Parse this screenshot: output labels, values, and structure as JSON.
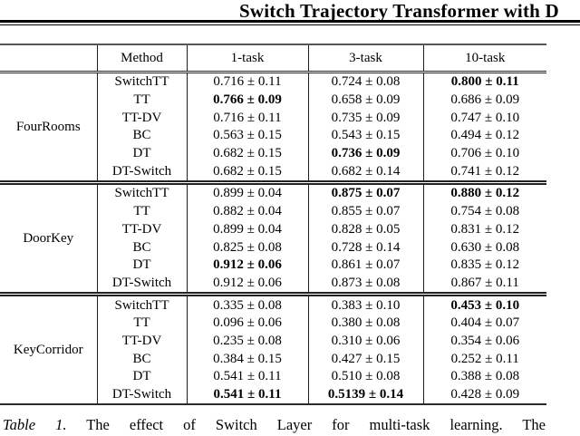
{
  "colors": {
    "background": "#ffffff",
    "text": "#000000",
    "rule": "#222222"
  },
  "header": {
    "title": "Switch Trajectory Transformer with D"
  },
  "table": {
    "headers": [
      "",
      "Method",
      "1-task",
      "3-task",
      "10-task"
    ],
    "groups": [
      {
        "env": "FourRooms",
        "rows": [
          {
            "method": "SwitchTT",
            "values": [
              "0.716 ± 0.11",
              "0.724 ± 0.08",
              "0.800 ± 0.11"
            ],
            "bold": [
              false,
              false,
              true
            ]
          },
          {
            "method": "TT",
            "values": [
              "0.766 ± 0.09",
              "0.658 ± 0.09",
              "0.686 ± 0.09"
            ],
            "bold": [
              true,
              false,
              false
            ]
          },
          {
            "method": "TT-DV",
            "values": [
              "0.716 ± 0.11",
              "0.735 ± 0.09",
              "0.747 ± 0.10"
            ],
            "bold": [
              false,
              false,
              false
            ]
          },
          {
            "method": "BC",
            "values": [
              "0.563 ± 0.15",
              "0.543 ± 0.15",
              "0.494 ± 0.12"
            ],
            "bold": [
              false,
              false,
              false
            ]
          },
          {
            "method": "DT",
            "values": [
              "0.682 ± 0.15",
              "0.736 ± 0.09",
              "0.706 ± 0.10"
            ],
            "bold": [
              false,
              true,
              false
            ]
          },
          {
            "method": "DT-Switch",
            "values": [
              "0.682 ± 0.15",
              "0.682 ± 0.14",
              "0.741 ± 0.12"
            ],
            "bold": [
              false,
              false,
              false
            ]
          }
        ]
      },
      {
        "env": "DoorKey",
        "rows": [
          {
            "method": "SwitchTT",
            "values": [
              "0.899 ± 0.04",
              "0.875 ± 0.07",
              "0.880 ± 0.12"
            ],
            "bold": [
              false,
              true,
              true
            ]
          },
          {
            "method": "TT",
            "values": [
              "0.882 ± 0.04",
              "0.855 ± 0.07",
              "0.754 ± 0.08"
            ],
            "bold": [
              false,
              false,
              false
            ]
          },
          {
            "method": "TT-DV",
            "values": [
              "0.899 ± 0.04",
              "0.828 ± 0.05",
              "0.831 ± 0.12"
            ],
            "bold": [
              false,
              false,
              false
            ]
          },
          {
            "method": "BC",
            "values": [
              "0.825 ± 0.08",
              "0.728 ± 0.14",
              "0.630 ± 0.08"
            ],
            "bold": [
              false,
              false,
              false
            ]
          },
          {
            "method": "DT",
            "values": [
              "0.912 ± 0.06",
              "0.861 ± 0.07",
              "0.835 ± 0.12"
            ],
            "bold": [
              true,
              false,
              false
            ]
          },
          {
            "method": "DT-Switch",
            "values": [
              "0.912 ± 0.06",
              "0.873 ± 0.08",
              "0.867 ± 0.11"
            ],
            "bold": [
              false,
              false,
              false
            ]
          }
        ]
      },
      {
        "env": "KeyCorridor",
        "rows": [
          {
            "method": "SwitchTT",
            "values": [
              "0.335 ± 0.08",
              "0.383 ± 0.10",
              "0.453 ± 0.10"
            ],
            "bold": [
              false,
              false,
              true
            ]
          },
          {
            "method": "TT",
            "values": [
              "0.096 ± 0.06",
              "0.380 ± 0.08",
              "0.404 ± 0.07"
            ],
            "bold": [
              false,
              false,
              false
            ]
          },
          {
            "method": "TT-DV",
            "values": [
              "0.235 ± 0.08",
              "0.310 ± 0.06",
              "0.354 ± 0.06"
            ],
            "bold": [
              false,
              false,
              false
            ]
          },
          {
            "method": "BC",
            "values": [
              "0.384 ± 0.15",
              "0.427 ± 0.15",
              "0.252 ± 0.11"
            ],
            "bold": [
              false,
              false,
              false
            ]
          },
          {
            "method": "DT",
            "values": [
              "0.541 ± 0.11",
              "0.510 ± 0.08",
              "0.388 ± 0.08"
            ],
            "bold": [
              false,
              false,
              false
            ]
          },
          {
            "method": "DT-Switch",
            "values": [
              "0.541 ± 0.11",
              "0.5139 ± 0.14",
              "0.428 ± 0.09"
            ],
            "bold": [
              true,
              true,
              false
            ]
          }
        ]
      }
    ]
  },
  "caption": {
    "label": "Table 1.",
    "text": "The effect of Switch Layer for multi-task learning. The"
  }
}
